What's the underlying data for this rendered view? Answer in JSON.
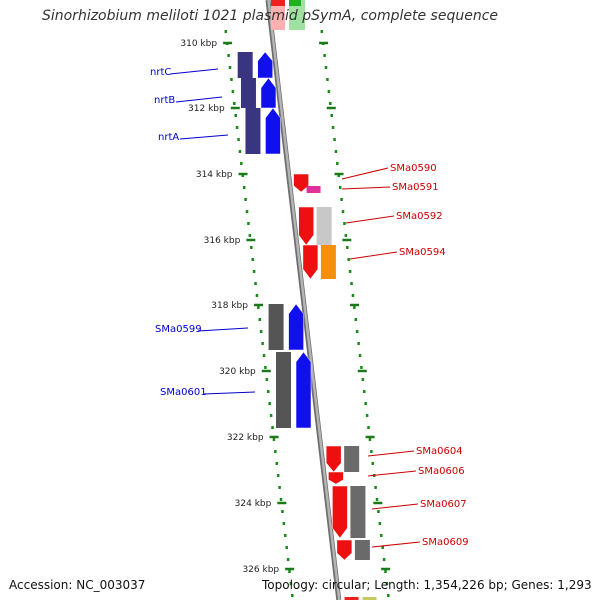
{
  "title": "Sinorhizobium meliloti 1021 plasmid pSymA, complete sequence",
  "footer": {
    "accession": "Accession: NC_003037",
    "summary": "Topology: circular; Length: 1,354,226 bp; Genes: 1,293"
  },
  "colors": {
    "forward_label": "#0000cc",
    "reverse_label": "#cc0000",
    "tick": "#1a7a1a",
    "backbone": "#8a8a8a"
  },
  "ruler": {
    "unit": "kbp",
    "ticks": [
      "310 kbp",
      "312 kbp",
      "314 kbp",
      "316 kbp",
      "318 kbp",
      "320 kbp",
      "322 kbp",
      "324 kbp",
      "326 kbp"
    ]
  },
  "features": {
    "forward": [
      {
        "label": "nrtC",
        "color": "#1010ee",
        "box": "#3a3580"
      },
      {
        "label": "nrtB",
        "color": "#1010ee",
        "box": "#3a3580"
      },
      {
        "label": "nrtA",
        "color": "#1010ee",
        "box": "#3a3580"
      },
      {
        "label": "SMa0599",
        "color": "#1010ee",
        "box": "#555555"
      },
      {
        "label": "SMa0601",
        "color": "#1010ee",
        "box": "#555555"
      }
    ],
    "reverse": [
      {
        "label": "SMa0590",
        "color": "#ee1010",
        "box": ""
      },
      {
        "label": "SMa0591",
        "color": "#e0309a",
        "box": "#e0309a"
      },
      {
        "label": "SMa0592",
        "color": "#ee1010",
        "box": "#c8c8c8"
      },
      {
        "label": "SMa0594",
        "color": "#ee1010",
        "box": "#f5900f"
      },
      {
        "label": "SMa0604",
        "color": "#ee1010",
        "box": "#6a6a6a"
      },
      {
        "label": "SMa0606",
        "color": "#ee1010",
        "box": ""
      },
      {
        "label": "SMa0607",
        "color": "#ee1010",
        "box": "#6a6a6a"
      },
      {
        "label": "SMa0609",
        "color": "#ee1010",
        "box": "#6a6a6a"
      }
    ]
  }
}
